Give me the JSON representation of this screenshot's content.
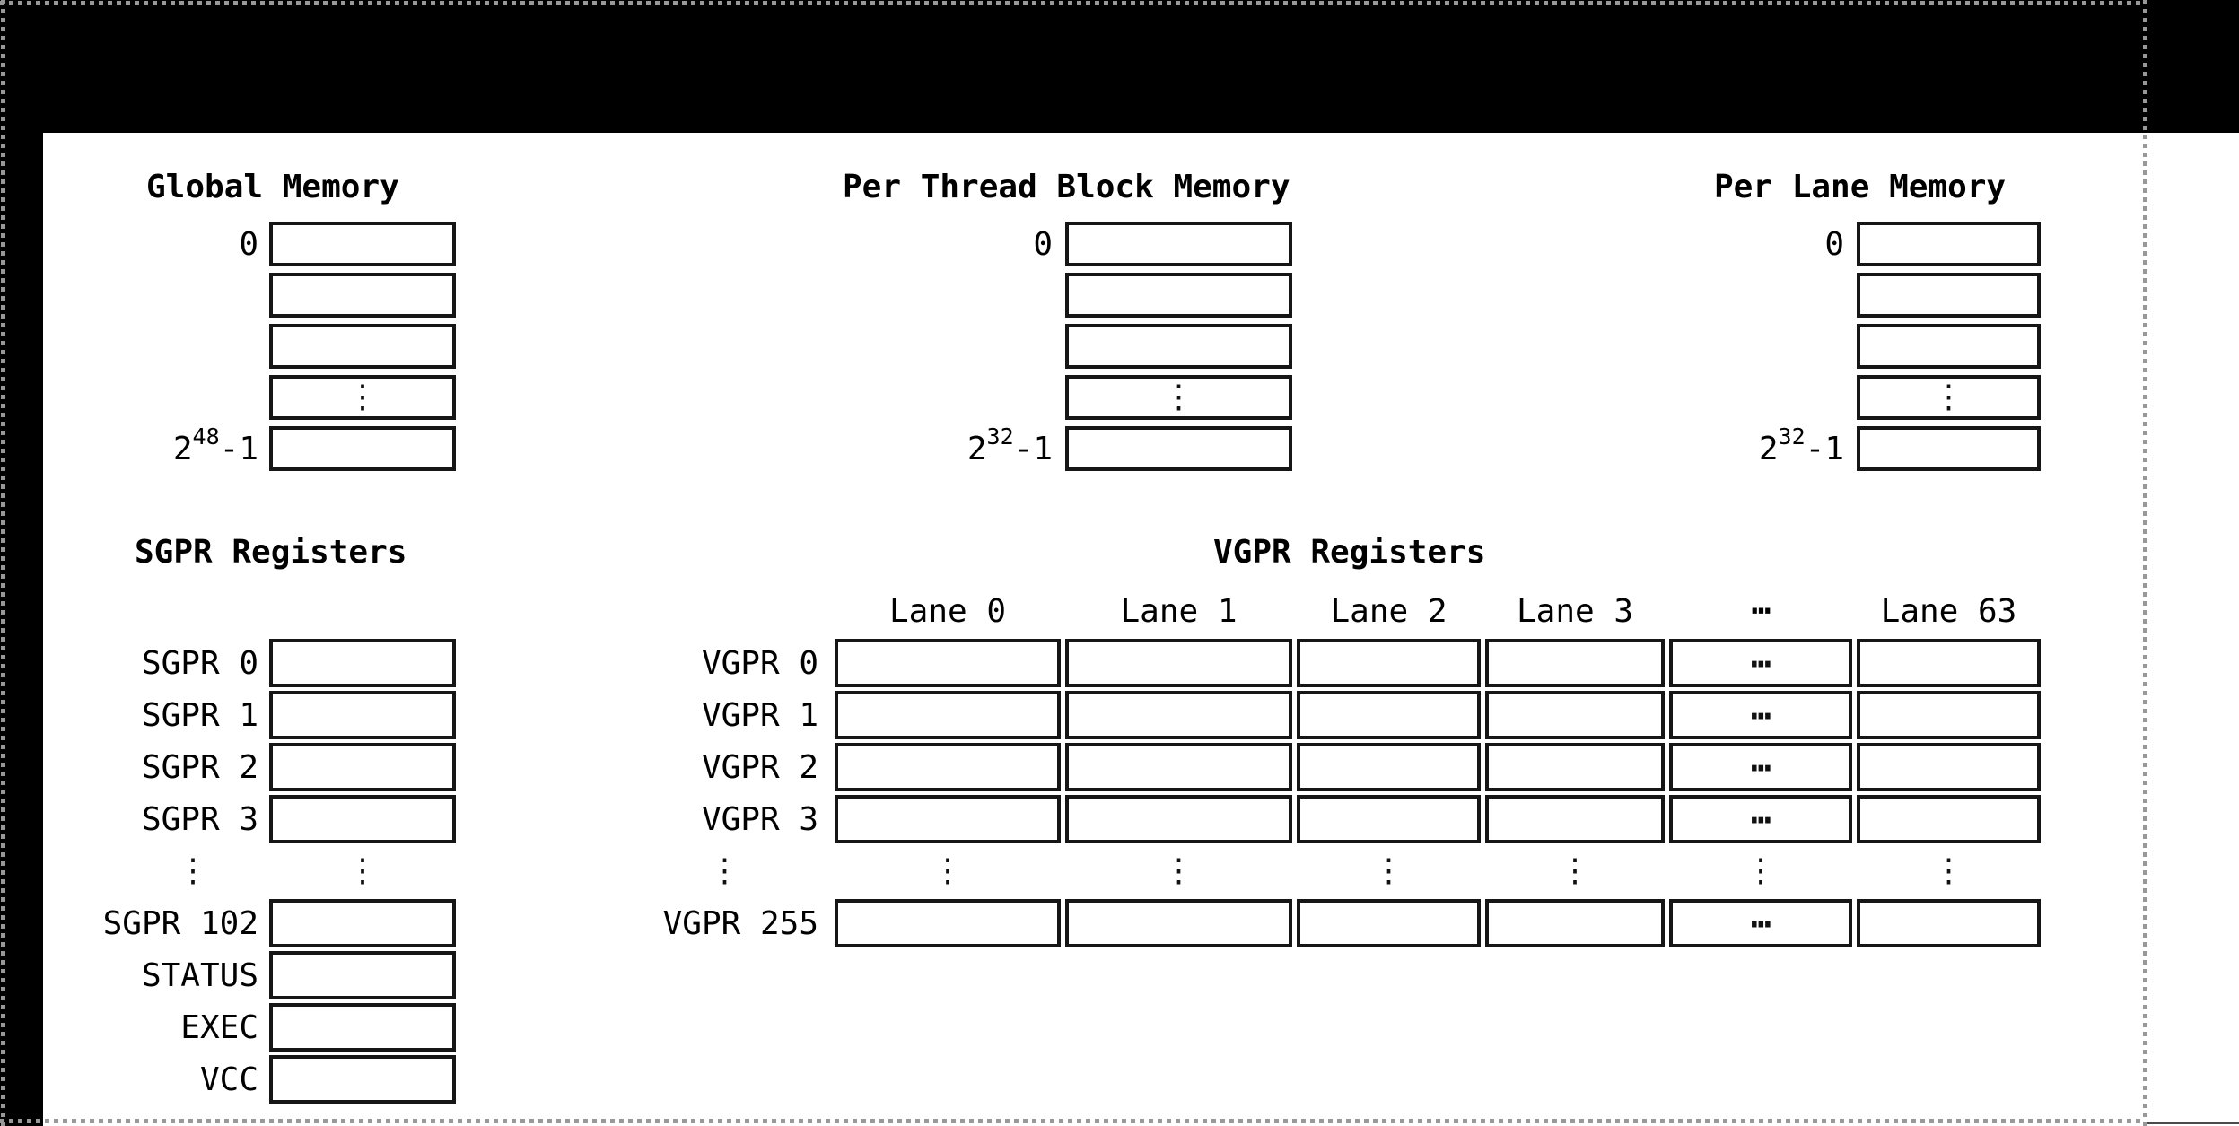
{
  "colors": {
    "canvas": "#000000",
    "page": "#ffffff",
    "box_border": "#161616",
    "text": "#000000",
    "dash": "#989898"
  },
  "memories": [
    {
      "title": "Global Memory",
      "first_label": "0",
      "last_label": {
        "base": "2",
        "exp": "48",
        "suffix": "-1"
      },
      "ellipsis": "⋮"
    },
    {
      "title": "Per Thread Block Memory",
      "first_label": "0",
      "last_label": {
        "base": "2",
        "exp": "32",
        "suffix": "-1"
      },
      "ellipsis": "⋮"
    },
    {
      "title": "Per Lane Memory",
      "first_label": "0",
      "last_label": {
        "base": "2",
        "exp": "32",
        "suffix": "-1"
      },
      "ellipsis": "⋮"
    }
  ],
  "sgpr": {
    "title": "SGPR Registers",
    "head_labels": [
      "SGPR 0",
      "SGPR 1",
      "SGPR 2",
      "SGPR 3"
    ],
    "tail_labels": [
      "SGPR 102",
      "STATUS",
      "EXEC",
      "VCC"
    ],
    "vertical_ellipsis": "⋮"
  },
  "vgpr": {
    "title": "VGPR Registers",
    "lane_headers": [
      "Lane 0",
      "Lane 1",
      "Lane 2",
      "Lane 3",
      "⋯",
      "Lane 63"
    ],
    "head_labels": [
      "VGPR 0",
      "VGPR 1",
      "VGPR 2",
      "VGPR 3"
    ],
    "tail_labels": [
      "VGPR 255"
    ],
    "ellipsis_col_index": 4,
    "cell_ellipsis": "⋯",
    "vertical_ellipsis": "⋮"
  }
}
